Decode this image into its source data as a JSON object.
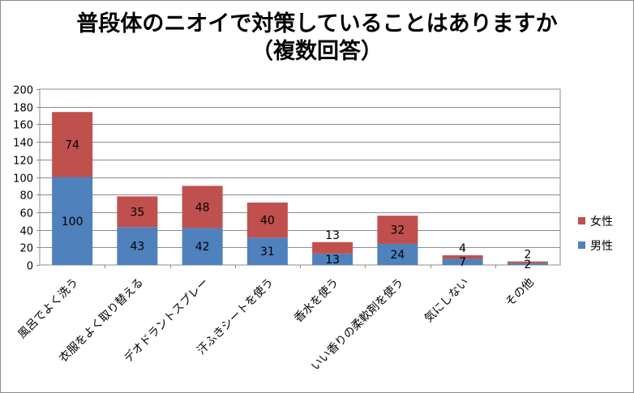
{
  "chart_data": {
    "type": "bar",
    "stacked": true,
    "title": "普段体のニオイで対策していることはありますか",
    "subtitle": "（複数回答）",
    "categories": [
      "風呂でよく洗う",
      "衣服をよく取り替える",
      "デオドラントスプレー",
      "汗ふきシートを使う",
      "香水を使う",
      "いい香りの柔軟剤を使う",
      "気にしない",
      "その他"
    ],
    "series": [
      {
        "name": "男性",
        "values": [
          100,
          43,
          42,
          31,
          13,
          24,
          7,
          2
        ],
        "color": "#4f81bd"
      },
      {
        "name": "女性",
        "values": [
          74,
          35,
          48,
          40,
          13,
          32,
          4,
          2
        ],
        "color": "#c0504d"
      }
    ],
    "y_ticks": [
      "0",
      "20",
      "40",
      "60",
      "80",
      "100",
      "120",
      "140",
      "160",
      "180",
      "200"
    ],
    "ylim": [
      0,
      200
    ],
    "grid": true,
    "legend_position": "right"
  }
}
